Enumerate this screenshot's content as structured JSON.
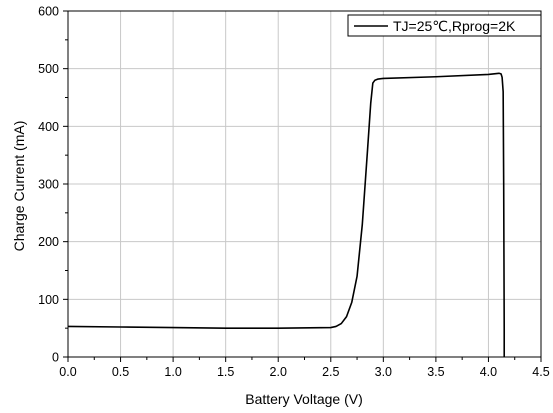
{
  "chart_data": {
    "type": "line",
    "xlabel": "Battery Voltage (V)",
    "ylabel": "Charge Current (mA)",
    "xlim": [
      0,
      4.5
    ],
    "ylim": [
      0,
      600
    ],
    "xticks": [
      "0.0",
      "0.5",
      "1.0",
      "1.5",
      "2.0",
      "2.5",
      "3.0",
      "3.5",
      "4.0",
      "4.5"
    ],
    "yticks": [
      "0",
      "100",
      "200",
      "300",
      "400",
      "500",
      "600"
    ],
    "grid": true,
    "legend_position": "top-right",
    "colors": {
      "line": "#000000",
      "grid": "#c8c8c8",
      "axis": "#000000"
    },
    "series": [
      {
        "name": "TJ=25℃,Rprog=2K",
        "x": [
          0.0,
          0.5,
          1.0,
          1.5,
          2.0,
          2.5,
          2.55,
          2.6,
          2.65,
          2.7,
          2.75,
          2.8,
          2.85,
          2.88,
          2.9,
          2.92,
          2.95,
          3.0,
          3.5,
          4.0,
          4.1,
          4.12,
          4.13,
          4.14,
          4.145,
          4.15,
          4.15
        ],
        "y": [
          53,
          52,
          51,
          50,
          50,
          51,
          53,
          58,
          70,
          95,
          140,
          230,
          360,
          440,
          475,
          480,
          482,
          483,
          486,
          490,
          492,
          491,
          485,
          460,
          300,
          50,
          0
        ]
      }
    ]
  }
}
